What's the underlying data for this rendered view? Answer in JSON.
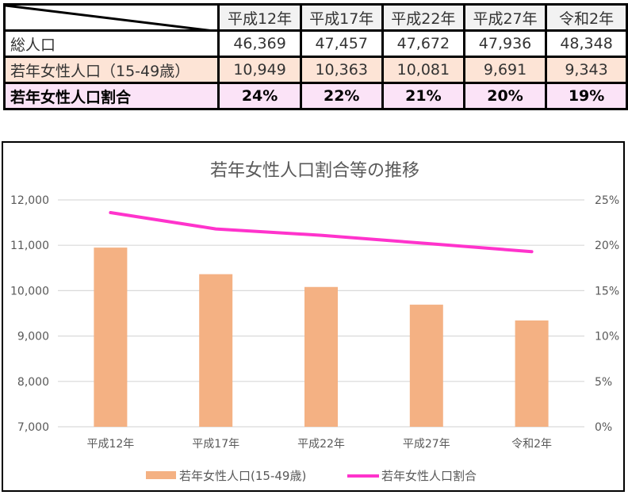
{
  "table": {
    "headers": [
      "平成12年",
      "平成17年",
      "平成22年",
      "平成27年",
      "令和2年"
    ],
    "rows": [
      {
        "label": "総人口",
        "values": [
          "46,369",
          "47,457",
          "47,672",
          "47,936",
          "48,348"
        ]
      },
      {
        "label": "若年女性人口（15-49歳）",
        "values": [
          "10,949",
          "10,363",
          "10,081",
          "9,691",
          "9,343"
        ]
      },
      {
        "label": "若年女性人口割合",
        "values": [
          "24%",
          "22%",
          "21%",
          "20%",
          "19%"
        ]
      }
    ]
  },
  "chart": {
    "title": "若年女性人口割合等の推移",
    "left_ticks": [
      "12,000",
      "11,000",
      "10,000",
      "9,000",
      "8,000",
      "7,000"
    ],
    "right_ticks": [
      "25%",
      "20%",
      "15%",
      "10%",
      "5%",
      "0%"
    ],
    "categories": [
      "平成12年",
      "平成17年",
      "平成22年",
      "平成27年",
      "令和2年"
    ],
    "legend": {
      "bar_label": "若年女性人口(15-49歳)",
      "line_label": "若年女性人口割合"
    },
    "colors": {
      "bar": "#f4b183",
      "line": "#ff33cc",
      "grid": "#d9d9d9",
      "text": "#595959"
    }
  },
  "chart_data": {
    "type": "bar",
    "title": "若年女性人口割合等の推移",
    "categories": [
      "平成12年",
      "平成17年",
      "平成22年",
      "平成27年",
      "令和2年"
    ],
    "series": [
      {
        "name": "若年女性人口(15-49歳)",
        "type": "bar",
        "axis": "left",
        "values": [
          10949,
          10363,
          10081,
          9691,
          9343
        ]
      },
      {
        "name": "若年女性人口割合",
        "type": "line",
        "axis": "right",
        "values": [
          0.236,
          0.218,
          0.211,
          0.202,
          0.193
        ]
      }
    ],
    "xlabel": "",
    "ylabel": "",
    "ylim": [
      7000,
      12000
    ],
    "y2lim": [
      0,
      0.25
    ],
    "grid": true,
    "legend_position": "bottom"
  }
}
